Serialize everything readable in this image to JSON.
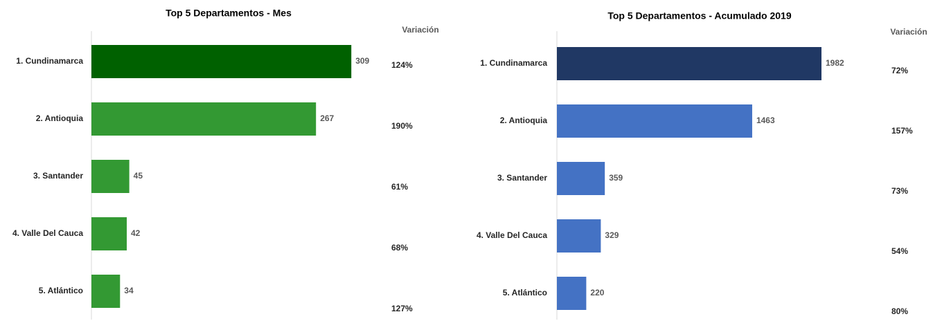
{
  "chart_data": [
    {
      "type": "bar",
      "orientation": "horizontal",
      "title": "Top 5 Departamentos - Mes",
      "categories": [
        "1. Cundinamarca",
        "2. Antioquia",
        "3. Santander",
        "4. Valle Del Cauca",
        "5. Atlántico"
      ],
      "values": [
        309,
        267,
        45,
        42,
        34
      ],
      "colors": [
        "#006100",
        "#339933",
        "#339933",
        "#339933",
        "#339933"
      ],
      "xlim": [
        0,
        350
      ],
      "variation": {
        "label": "Variación",
        "values": [
          124,
          190,
          61,
          68,
          127
        ],
        "value_labels": [
          "124%",
          "190%",
          "61%",
          "68%",
          "127%"
        ]
      }
    },
    {
      "type": "bar",
      "orientation": "horizontal",
      "title": "Top 5 Departamentos - Acumulado 2019",
      "categories": [
        "1. Cundinamarca",
        "2. Antioquia",
        "3. Santander",
        "4. Valle Del Cauca",
        "5. Atlántico"
      ],
      "values": [
        1982,
        1463,
        359,
        329,
        220
      ],
      "colors": [
        "#203864",
        "#4472c4",
        "#4472c4",
        "#4472c4",
        "#4472c4"
      ],
      "xlim": [
        0,
        2200
      ],
      "variation": {
        "label": "Variación",
        "values": [
          72,
          157,
          73,
          54,
          80
        ],
        "value_labels": [
          "72%",
          "157%",
          "73%",
          "54%",
          "80%"
        ]
      }
    }
  ]
}
